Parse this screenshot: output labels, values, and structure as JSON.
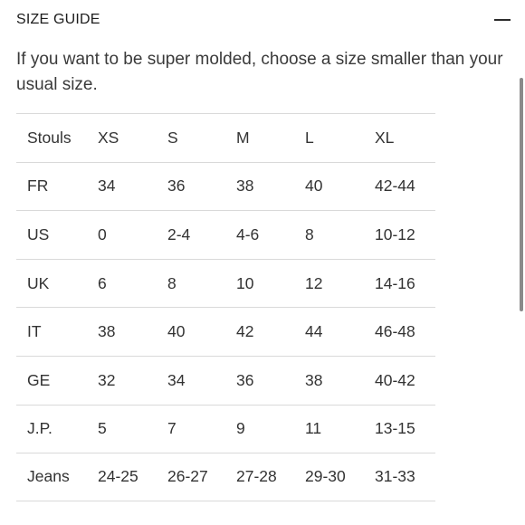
{
  "header": {
    "title": "SIZE GUIDE",
    "collapse_icon": "minus-icon"
  },
  "description": "If you want to be super molded, choose a size smaller than your usual size.",
  "table": {
    "columns": [
      "Stouls",
      "XS",
      "S",
      "M",
      "L",
      "XL"
    ],
    "rows": [
      [
        "FR",
        "34",
        "36",
        "38",
        "40",
        "42-44"
      ],
      [
        "US",
        "0",
        "2-4",
        "4-6",
        "8",
        "10-12"
      ],
      [
        "UK",
        "6",
        "8",
        "10",
        "12",
        "14-16"
      ],
      [
        "IT",
        "38",
        "40",
        "42",
        "44",
        "46-48"
      ],
      [
        "GE",
        "32",
        "34",
        "36",
        "38",
        "40-42"
      ],
      [
        "J.P.",
        "5",
        "7",
        "9",
        "11",
        "13-15"
      ],
      [
        "Jeans",
        "24-25",
        "26-27",
        "27-28",
        "29-30",
        "31-33"
      ]
    ]
  }
}
